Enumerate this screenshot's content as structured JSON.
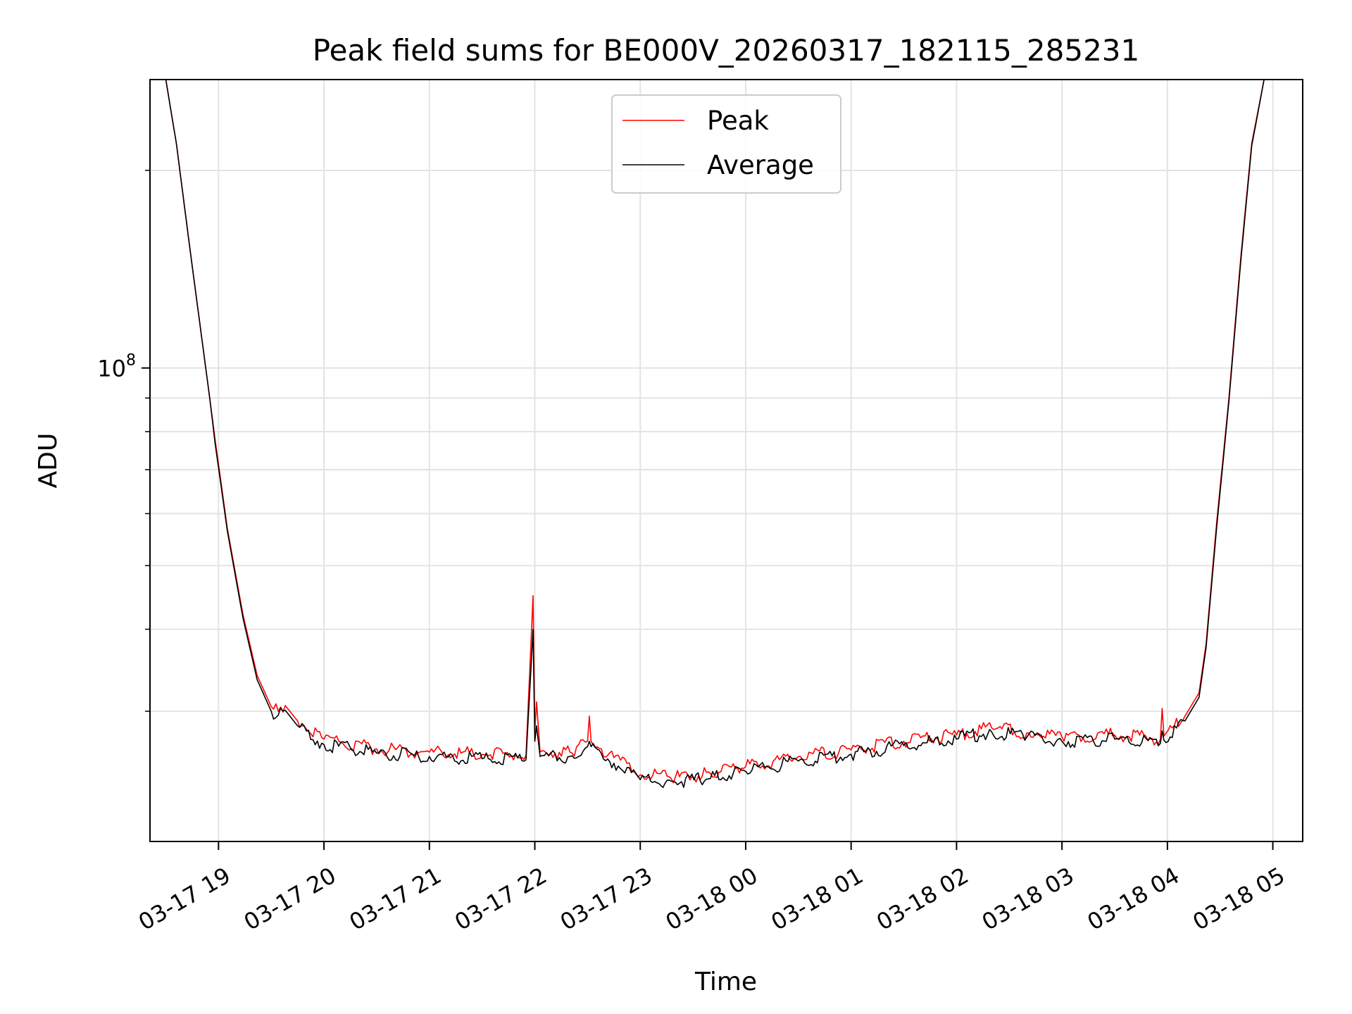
{
  "chart_data": {
    "type": "line",
    "title": "Peak field sums for BE000V_20260317_182115_285231",
    "xlabel": "Time",
    "ylabel": "ADU",
    "y_scale": "log",
    "grid": true,
    "legend_position": "top-center",
    "xlim": [
      "2026-03-17 18:21",
      "2026-03-18 05:17"
    ],
    "ylim": [
      19000000,
      275000000
    ],
    "x_tick_labels": [
      "03-17 19",
      "03-17 20",
      "03-17 21",
      "03-17 22",
      "03-17 23",
      "03-18 00",
      "03-18 01",
      "03-18 02",
      "03-18 03",
      "03-18 04",
      "03-18 05"
    ],
    "x_tick_values": [
      "2026-03-17 19:00",
      "2026-03-17 20:00",
      "2026-03-17 21:00",
      "2026-03-17 22:00",
      "2026-03-17 23:00",
      "2026-03-18 00:00",
      "2026-03-18 01:00",
      "2026-03-18 02:00",
      "2026-03-18 03:00",
      "2026-03-18 04:00",
      "2026-03-18 05:00"
    ],
    "y_major_tick_label": {
      "base": "10",
      "exponent": "8"
    },
    "y_major_tick_value": 100000000,
    "y_minor_tick_values": [
      30000000,
      40000000,
      50000000,
      60000000,
      70000000,
      80000000,
      90000000,
      200000000
    ],
    "series": [
      {
        "name": "Peak",
        "color": "#ff0000",
        "x": [
          "2026-03-17 18:21",
          "2026-03-17 18:30",
          "2026-03-17 18:36",
          "2026-03-17 18:44",
          "2026-03-17 18:55",
          "2026-03-17 18:58",
          "2026-03-17 19:05",
          "2026-03-17 19:14",
          "2026-03-17 19:22",
          "2026-03-17 19:30",
          "2026-03-17 19:34",
          "2026-03-17 19:38",
          "2026-03-17 19:45",
          "2026-03-17 20:00",
          "2026-03-17 20:30",
          "2026-03-17 21:00",
          "2026-03-17 21:30",
          "2026-03-17 21:55",
          "2026-03-17 21:59",
          "2026-03-17 22:00",
          "2026-03-17 22:01",
          "2026-03-17 22:03",
          "2026-03-17 22:20",
          "2026-03-17 22:30",
          "2026-03-17 22:31",
          "2026-03-17 22:32",
          "2026-03-17 22:45",
          "2026-03-17 23:00",
          "2026-03-17 23:20",
          "2026-03-17 23:40",
          "2026-03-18 00:00",
          "2026-03-18 00:30",
          "2026-03-18 01:00",
          "2026-03-18 01:30",
          "2026-03-18 02:00",
          "2026-03-18 02:20",
          "2026-03-18 02:40",
          "2026-03-18 03:00",
          "2026-03-18 03:30",
          "2026-03-18 03:56",
          "2026-03-18 03:57",
          "2026-03-18 03:58",
          "2026-03-18 04:10",
          "2026-03-18 04:18",
          "2026-03-18 04:22",
          "2026-03-18 04:28",
          "2026-03-18 04:35",
          "2026-03-18 04:42",
          "2026-03-18 04:48",
          "2026-03-18 04:55",
          "2026-03-18 05:17"
        ],
        "values": [
          275000000,
          275000000,
          220000000,
          150000000,
          90000000,
          78000000,
          57000000,
          42000000,
          34000000,
          30500000,
          30000000,
          30600000,
          29000000,
          27200000,
          26300000,
          26000000,
          25800000,
          25700000,
          45000000,
          28000000,
          31000000,
          26000000,
          26000000,
          27000000,
          29500000,
          27000000,
          25500000,
          24000000,
          23800000,
          24100000,
          24700000,
          25600000,
          26200000,
          27000000,
          27600000,
          28300000,
          27800000,
          27400000,
          27600000,
          27200000,
          30300000,
          27500000,
          29500000,
          32000000,
          38000000,
          58000000,
          90000000,
          150000000,
          220000000,
          275000000,
          275000000
        ]
      },
      {
        "name": "Average",
        "color": "#000000",
        "x": [
          "2026-03-17 18:21",
          "2026-03-17 18:30",
          "2026-03-17 18:36",
          "2026-03-17 18:44",
          "2026-03-17 18:55",
          "2026-03-17 18:58",
          "2026-03-17 19:05",
          "2026-03-17 19:14",
          "2026-03-17 19:22",
          "2026-03-17 19:30",
          "2026-03-17 19:34",
          "2026-03-17 19:38",
          "2026-03-17 19:45",
          "2026-03-17 20:00",
          "2026-03-17 20:30",
          "2026-03-17 21:00",
          "2026-03-17 21:30",
          "2026-03-17 21:55",
          "2026-03-17 21:59",
          "2026-03-17 22:00",
          "2026-03-17 22:01",
          "2026-03-17 22:03",
          "2026-03-17 22:20",
          "2026-03-17 22:30",
          "2026-03-17 22:31",
          "2026-03-17 22:32",
          "2026-03-17 22:45",
          "2026-03-17 23:00",
          "2026-03-17 23:20",
          "2026-03-17 23:40",
          "2026-03-18 00:00",
          "2026-03-18 00:30",
          "2026-03-18 01:00",
          "2026-03-18 01:30",
          "2026-03-18 02:00",
          "2026-03-18 02:20",
          "2026-03-18 02:40",
          "2026-03-18 03:00",
          "2026-03-18 03:30",
          "2026-03-18 03:56",
          "2026-03-18 03:57",
          "2026-03-18 03:58",
          "2026-03-18 04:10",
          "2026-03-18 04:18",
          "2026-03-18 04:22",
          "2026-03-18 04:28",
          "2026-03-18 04:35",
          "2026-03-18 04:42",
          "2026-03-18 04:48",
          "2026-03-18 04:55",
          "2026-03-18 05:17"
        ],
        "values": [
          275000000,
          275000000,
          220000000,
          150000000,
          90000000,
          77000000,
          56500000,
          41500000,
          33500000,
          30000000,
          29600000,
          30100000,
          28500000,
          26700000,
          25900000,
          25600000,
          25400000,
          25300000,
          40000000,
          27000000,
          28500000,
          25600000,
          25600000,
          26500000,
          27000000,
          26500000,
          25000000,
          23600000,
          23400000,
          23700000,
          24300000,
          25200000,
          25800000,
          26600000,
          27200000,
          27900000,
          27400000,
          27000000,
          27200000,
          26800000,
          28000000,
          27100000,
          29000000,
          31500000,
          37500000,
          57000000,
          89000000,
          148000000,
          218000000,
          275000000,
          275000000
        ]
      }
    ]
  }
}
